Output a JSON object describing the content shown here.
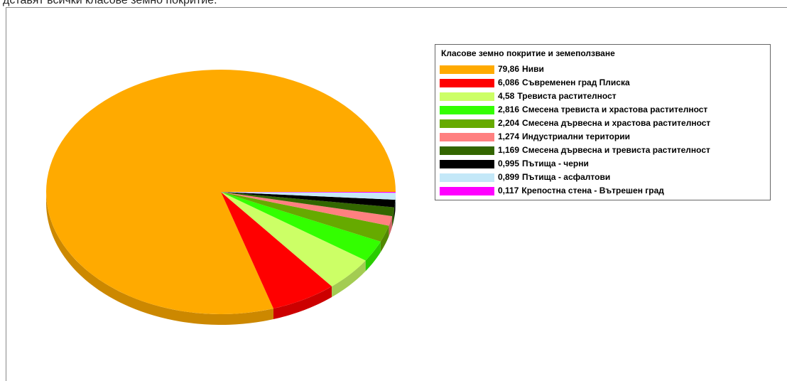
{
  "caption": "дставят всички класове земно покритие.",
  "chart_data": {
    "type": "pie",
    "legend_title": "Класове земно покритие и земеползване",
    "categories": [
      "Ниви",
      "Съвременен град Плиска",
      "Тревиста растителност",
      "Смесена тревиста и храстова растителност",
      "Смесена дървесна и храстова растителност",
      "Индустриални територии",
      "Смесена дървесна и тревиста растителност",
      "Пътища - черни",
      "Пътища - асфалтови",
      "Крепостна стена - Вътрешен град"
    ],
    "values": [
      79.86,
      6.086,
      4.58,
      2.816,
      2.204,
      1.274,
      1.169,
      0.995,
      0.899,
      0.117
    ],
    "value_labels": [
      "79,86",
      "6,086",
      "4,58",
      "2,816",
      "2,204",
      "1,274",
      "1,169",
      "0,995",
      "0,899",
      "0,117"
    ],
    "colors": [
      "#FFAA00",
      "#FF0000",
      "#CCFF66",
      "#33FF00",
      "#66AA00",
      "#FF8080",
      "#336600",
      "#000000",
      "#C4E8F8",
      "#FF00FF"
    ],
    "legend": "right"
  }
}
